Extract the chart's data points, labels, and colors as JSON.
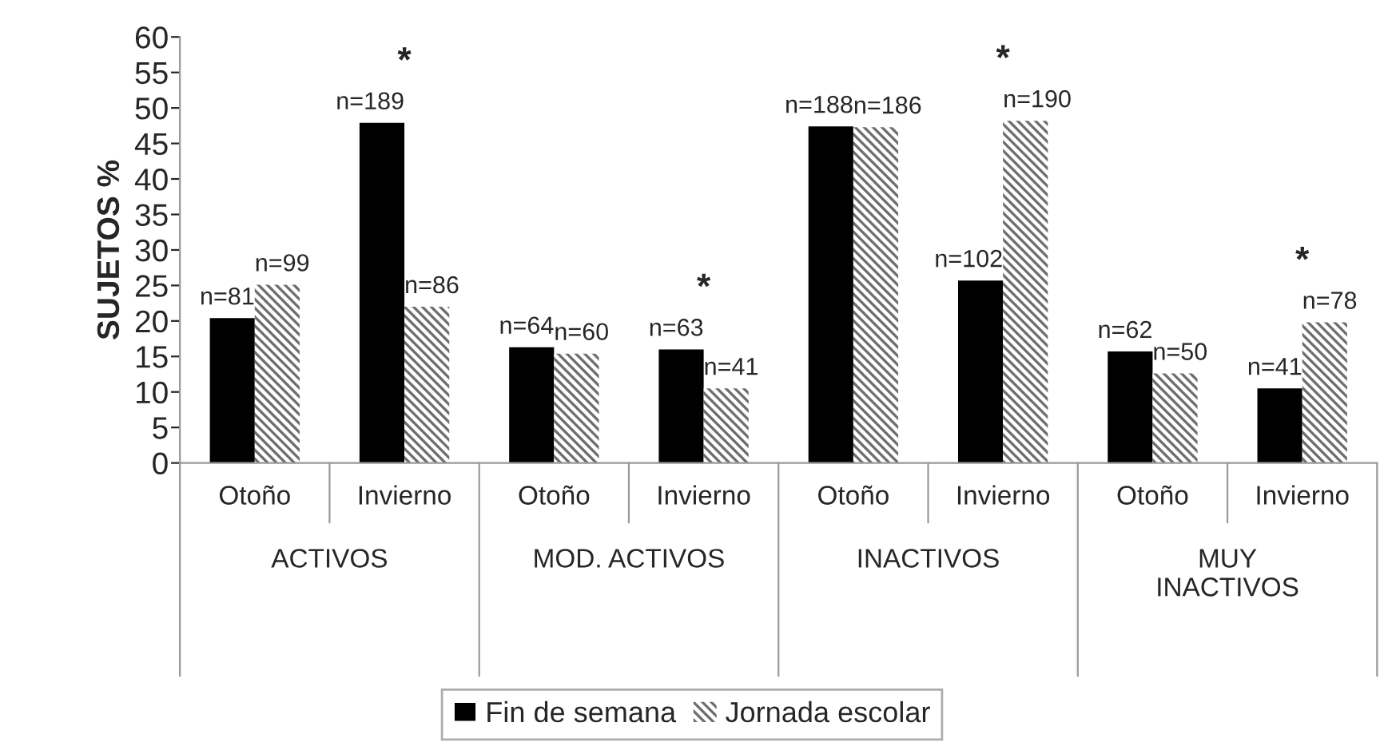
{
  "chart_data": {
    "type": "bar",
    "ylabel": "SUJETOS %",
    "categories": [
      "Otoño",
      "Invierno",
      "Otoño",
      "Invierno",
      "Otoño",
      "Invierno",
      "Otoño",
      "Invierno"
    ],
    "series": [
      {
        "name": "Fin de semana",
        "color": "#000000",
        "values": [
          20.4,
          47.9,
          16.3,
          16.0,
          47.4,
          25.7,
          15.7,
          10.5
        ]
      },
      {
        "name": "Jornada escolar",
        "color": "#6e6e6e",
        "values": [
          25.1,
          22.0,
          15.4,
          10.5,
          47.3,
          48.2,
          12.6,
          19.8
        ]
      }
    ],
    "annotations": [
      "n=81",
      "n=189",
      "n=64",
      "n=63",
      "n=188",
      "n=102",
      "n=62",
      "n=41",
      "n=99",
      "n=86",
      "n=60",
      "n=41",
      "n=186",
      "n=190",
      "n=50",
      "n=78",
      "ACTIVOS",
      "MOD. ACTIVOS",
      "INACTIVOS",
      "MUY\nINACTIVOS",
      "*",
      "*",
      "*",
      "*"
    ],
    "ylim": [
      0,
      60
    ],
    "yticks": [
      0,
      5,
      10,
      15,
      20,
      25,
      30,
      35,
      40,
      45,
      50,
      55,
      60
    ],
    "grid": false,
    "legend": "bottom"
  }
}
